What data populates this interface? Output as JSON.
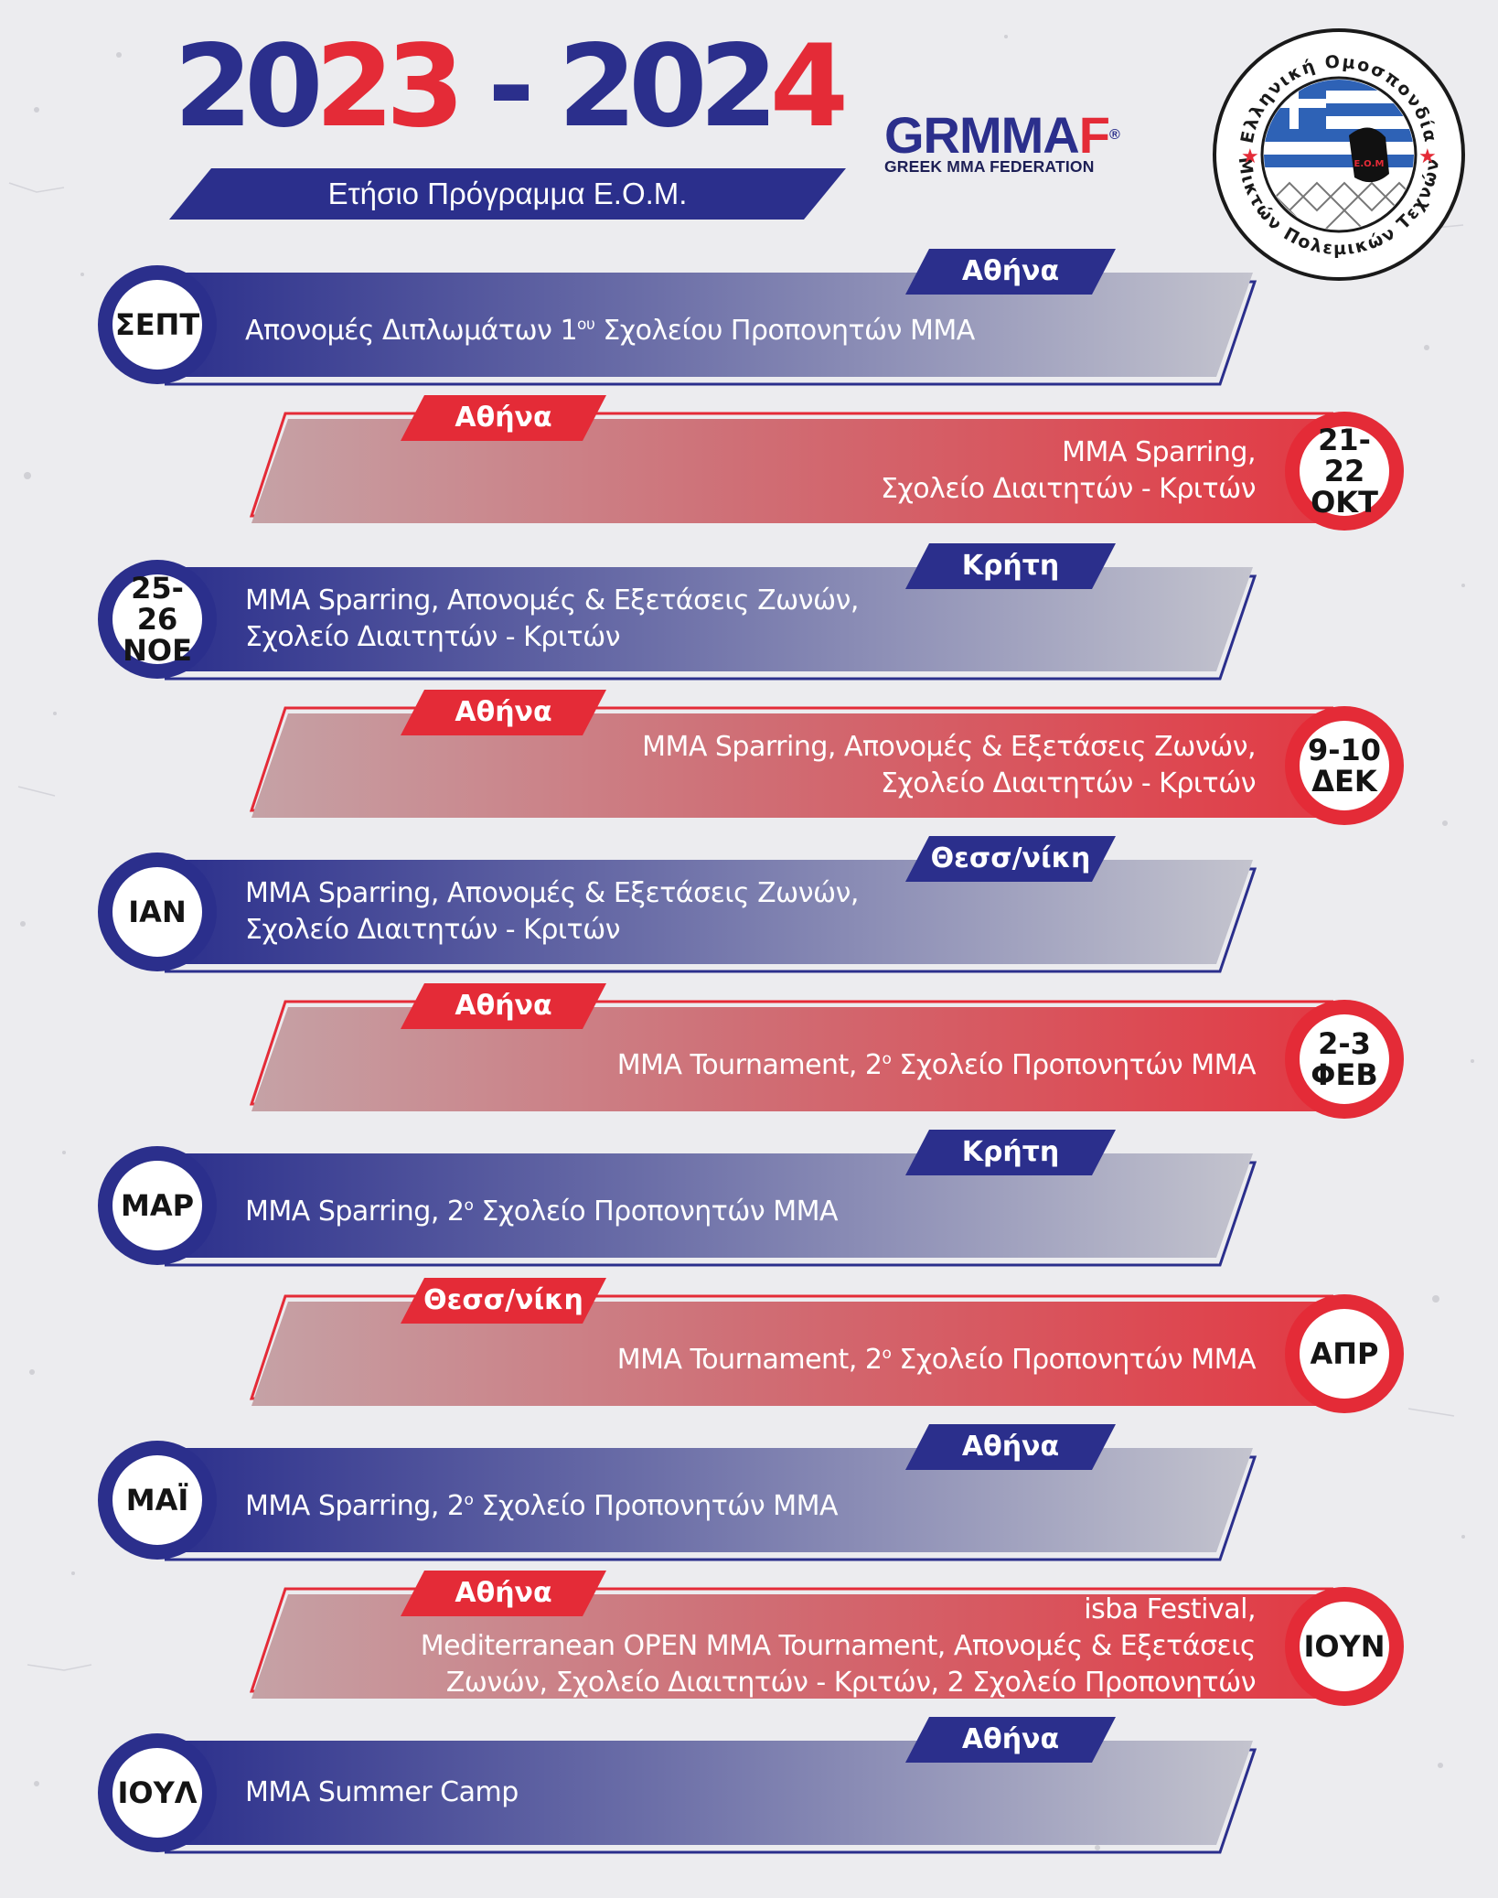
{
  "header": {
    "year_start": "20",
    "year_start_red": "23",
    "separator": " - ",
    "year_end": "202",
    "year_end_red": "4",
    "subtitle": "Ετήσιο Πρόγραμμα Ε.Ο.Μ."
  },
  "logo": {
    "gr": "GRMMA",
    "f": "F",
    "reg": "®",
    "tagline": "GREEK MMA FEDERATION"
  },
  "seal": {
    "top_text": "Ελληνική Ομοσπονδία",
    "bottom_text": "Μικτών Πολεμικών Τεχνών",
    "mark": "Ε.Ο.Μ"
  },
  "colors": {
    "blue": "#2b2f8c",
    "red": "#e42b37",
    "background": "#ececef"
  },
  "events": [
    {
      "date_line1": "ΣΕΠΤ",
      "date_line2": "",
      "location": "Αθήνα",
      "line1_pre": "Απονομές Διπλωμάτων 1",
      "line1_sup": "ου",
      "line1_post": " Σχολείου Προπονητών MMA",
      "line2": ""
    },
    {
      "date_line1": "21-22",
      "date_line2": "ΟΚΤ",
      "location": "Αθήνα",
      "line1_pre": "MMA Sparring,",
      "line1_sup": "",
      "line1_post": "",
      "line2": "Σχολείο Διαιτητών - Κριτών"
    },
    {
      "date_line1": "25-26",
      "date_line2": "ΝΟΕ",
      "location": "Κρήτη",
      "line1_pre": "MMA Sparring, Απονομές & Εξετάσεις Ζωνών,",
      "line1_sup": "",
      "line1_post": "",
      "line2": "Σχολείο Διαιτητών - Κριτών"
    },
    {
      "date_line1": "9-10",
      "date_line2": "ΔΕΚ",
      "location": "Αθήνα",
      "line1_pre": "MMA Sparring, Απονομές & Εξετάσεις Ζωνών,",
      "line1_sup": "",
      "line1_post": "",
      "line2": "Σχολείο Διαιτητών - Κριτών"
    },
    {
      "date_line1": "ΙΑΝ",
      "date_line2": "",
      "location": "Θεσσ/νίκη",
      "line1_pre": "MMA Sparring, Απονομές & Εξετάσεις Ζωνών,",
      "line1_sup": "",
      "line1_post": "",
      "line2": "Σχολείο Διαιτητών - Κριτών"
    },
    {
      "date_line1": "2-3",
      "date_line2": "ΦΕΒ",
      "location": "Αθήνα",
      "line1_pre": "MMA Tournament, 2",
      "line1_sup": "ο",
      "line1_post": " Σχολείο Προπονητών MMA",
      "line2": ""
    },
    {
      "date_line1": "ΜΑΡ",
      "date_line2": "",
      "location": "Κρήτη",
      "line1_pre": "MMA Sparring, 2",
      "line1_sup": "ο",
      "line1_post": " Σχολείο Προπονητών MMA",
      "line2": ""
    },
    {
      "date_line1": "ΑΠΡ",
      "date_line2": "",
      "location": "Θεσσ/νίκη",
      "line1_pre": "MMA Tournament, 2",
      "line1_sup": "ο",
      "line1_post": " Σχολείο Προπονητών MMA",
      "line2": ""
    },
    {
      "date_line1": "ΜΑΪ",
      "date_line2": "",
      "location": "Αθήνα",
      "line1_pre": "MMA Sparring, 2",
      "line1_sup": "ο",
      "line1_post": " Σχολείο Προπονητών MMA",
      "line2": ""
    },
    {
      "date_line1": "ΙΟΥΝ",
      "date_line2": "",
      "location": "Αθήνα",
      "line1_pre": "isba Festival,",
      "line1_sup": "",
      "line1_post": "",
      "line2": "Mediterranean OPEN MMA Tournament, Απονομές & Εξετάσεις",
      "line3": "Ζωνών, Σχολείο Διαιτητών - Κριτών, 2  Σχολείο Προπονητών"
    },
    {
      "date_line1": "ΙΟΥΛ",
      "date_line2": "",
      "location": "Αθήνα",
      "line1_pre": "MMA Summer Camp",
      "line1_sup": "",
      "line1_post": "",
      "line2": ""
    }
  ]
}
